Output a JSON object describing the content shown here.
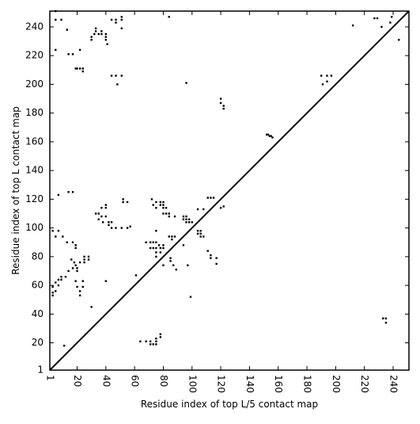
{
  "chart_data": {
    "type": "heatmap",
    "subtype": "contact map scatter",
    "xlabel": "Residue index of top L/5 contact map",
    "ylabel": "Residue index of top L contact map",
    "xlim": [
      1,
      251
    ],
    "ylim": [
      1,
      251
    ],
    "x_ticks": [
      1,
      20,
      40,
      60,
      80,
      100,
      120,
      140,
      160,
      180,
      200,
      220,
      240
    ],
    "y_ticks": [
      1,
      20,
      40,
      60,
      80,
      100,
      120,
      140,
      160,
      180,
      200,
      220,
      240
    ],
    "x_tick_rotation": 90,
    "diagonal": true,
    "marker_color": "#000000",
    "upper_triangle_contacts": [
      [
        5,
        245
      ],
      [
        5,
        251
      ],
      [
        9,
        245
      ],
      [
        5,
        224
      ],
      [
        13,
        238
      ],
      [
        14,
        221
      ],
      [
        17,
        221
      ],
      [
        19,
        211
      ],
      [
        20,
        211
      ],
      [
        22,
        211
      ],
      [
        24,
        211
      ],
      [
        24,
        209
      ],
      [
        22,
        224
      ],
      [
        30,
        233
      ],
      [
        30,
        231
      ],
      [
        32,
        235
      ],
      [
        33,
        237
      ],
      [
        33,
        239
      ],
      [
        35,
        235
      ],
      [
        37,
        237
      ],
      [
        37,
        235
      ],
      [
        40,
        235
      ],
      [
        40,
        233
      ],
      [
        40,
        231
      ],
      [
        41,
        228
      ],
      [
        44,
        245
      ],
      [
        47,
        245
      ],
      [
        47,
        243
      ],
      [
        51,
        245
      ],
      [
        51,
        247
      ],
      [
        51,
        239
      ],
      [
        84,
        247
      ],
      [
        44,
        206
      ],
      [
        47,
        206
      ],
      [
        51,
        206
      ],
      [
        48,
        200
      ],
      [
        96,
        201
      ],
      [
        212,
        241
      ],
      [
        227,
        246
      ],
      [
        229,
        246
      ],
      [
        232,
        240
      ],
      [
        238,
        243
      ],
      [
        239,
        247
      ],
      [
        244,
        231
      ],
      [
        120,
        190
      ],
      [
        120,
        187
      ],
      [
        122,
        185
      ],
      [
        122,
        183
      ],
      [
        152,
        165
      ],
      [
        153,
        165
      ],
      [
        154,
        164
      ],
      [
        155,
        164
      ],
      [
        156,
        163
      ],
      [
        190,
        206
      ],
      [
        194,
        206
      ],
      [
        194,
        202
      ],
      [
        197,
        206
      ],
      [
        191,
        200
      ],
      [
        7,
        123
      ],
      [
        14,
        125
      ],
      [
        17,
        125
      ]
    ],
    "lower_triangle_contacts": [
      [
        3,
        98
      ],
      [
        5,
        94
      ],
      [
        10,
        94
      ],
      [
        7,
        98
      ],
      [
        13,
        90
      ],
      [
        17,
        90
      ],
      [
        19,
        88
      ],
      [
        19,
        86
      ],
      [
        16,
        78
      ],
      [
        18,
        76
      ],
      [
        19,
        74
      ],
      [
        20,
        72
      ],
      [
        20,
        70
      ],
      [
        22,
        76
      ],
      [
        25,
        76
      ],
      [
        25,
        80
      ],
      [
        25,
        78
      ],
      [
        28,
        80
      ],
      [
        28,
        78
      ],
      [
        17,
        72
      ],
      [
        14,
        70
      ],
      [
        12,
        66
      ],
      [
        9,
        66
      ],
      [
        7,
        64
      ],
      [
        9,
        64
      ],
      [
        5,
        62
      ],
      [
        3,
        59
      ],
      [
        5,
        56
      ],
      [
        3,
        53
      ],
      [
        3,
        55
      ],
      [
        7,
        60
      ],
      [
        19,
        63
      ],
      [
        20,
        59
      ],
      [
        22,
        56
      ],
      [
        22,
        53
      ],
      [
        24,
        63
      ],
      [
        24,
        59
      ],
      [
        30,
        45
      ],
      [
        40,
        63
      ],
      [
        11,
        18
      ],
      [
        33,
        110
      ],
      [
        35,
        106
      ],
      [
        35,
        110
      ],
      [
        37,
        114
      ],
      [
        37,
        108
      ],
      [
        38,
        104
      ],
      [
        40,
        108
      ],
      [
        40,
        114
      ],
      [
        40,
        116
      ],
      [
        42,
        104
      ],
      [
        42,
        102
      ],
      [
        44,
        104
      ],
      [
        44,
        100
      ],
      [
        47,
        100
      ],
      [
        51,
        100
      ],
      [
        52,
        120
      ],
      [
        52,
        118
      ],
      [
        55,
        118
      ],
      [
        55,
        100
      ],
      [
        57,
        101
      ],
      [
        61,
        67
      ],
      [
        64,
        21
      ],
      [
        68,
        21
      ],
      [
        71,
        21
      ],
      [
        71,
        19
      ],
      [
        73,
        19
      ],
      [
        75,
        19
      ],
      [
        75,
        21
      ],
      [
        75,
        23
      ],
      [
        78,
        26
      ],
      [
        78,
        24
      ],
      [
        68,
        90
      ],
      [
        71,
        90
      ],
      [
        71,
        86
      ],
      [
        73,
        90
      ],
      [
        73,
        86
      ],
      [
        75,
        90
      ],
      [
        75,
        86
      ],
      [
        75,
        83
      ],
      [
        75,
        80
      ],
      [
        77,
        88
      ],
      [
        78,
        86
      ],
      [
        78,
        83
      ],
      [
        80,
        88
      ],
      [
        80,
        86
      ],
      [
        72,
        120
      ],
      [
        73,
        116
      ],
      [
        75,
        118
      ],
      [
        75,
        114
      ],
      [
        75,
        98
      ],
      [
        78,
        116
      ],
      [
        78,
        118
      ],
      [
        80,
        116
      ],
      [
        80,
        118
      ],
      [
        80,
        114
      ],
      [
        80,
        110
      ],
      [
        82,
        110
      ],
      [
        82,
        114
      ],
      [
        84,
        110
      ],
      [
        84,
        108
      ],
      [
        84,
        94
      ],
      [
        86,
        94
      ],
      [
        86,
        92
      ],
      [
        88,
        94
      ],
      [
        88,
        108
      ],
      [
        85,
        79
      ],
      [
        85,
        77
      ],
      [
        87,
        74
      ],
      [
        89,
        71
      ],
      [
        80,
        74
      ],
      [
        94,
        88
      ],
      [
        94,
        106
      ],
      [
        94,
        108
      ],
      [
        96,
        106
      ],
      [
        96,
        108
      ],
      [
        98,
        106
      ],
      [
        98,
        104
      ],
      [
        100,
        104
      ],
      [
        96,
        104
      ],
      [
        97,
        74
      ],
      [
        99,
        52
      ],
      [
        104,
        113
      ],
      [
        104,
        98
      ],
      [
        104,
        96
      ],
      [
        106,
        98
      ],
      [
        106,
        96
      ],
      [
        106,
        94
      ],
      [
        108,
        94
      ],
      [
        108,
        113
      ],
      [
        111,
        121
      ],
      [
        113,
        121
      ],
      [
        115,
        121
      ],
      [
        111,
        84
      ],
      [
        113,
        81
      ],
      [
        113,
        79
      ],
      [
        117,
        79
      ],
      [
        117,
        75
      ],
      [
        120,
        114
      ],
      [
        122,
        115
      ],
      [
        233,
        37
      ],
      [
        235,
        37
      ],
      [
        235,
        34
      ]
    ]
  }
}
